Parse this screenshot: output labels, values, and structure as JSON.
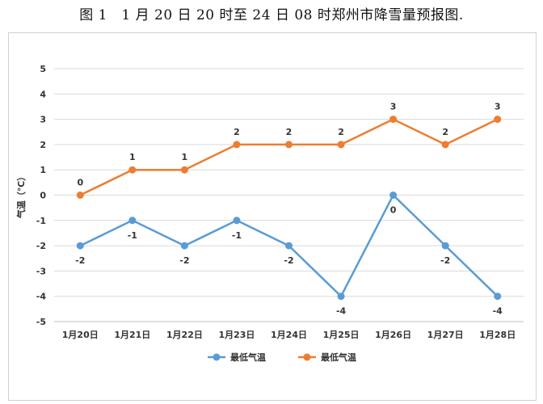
{
  "figure_title": "图 1　1 月 20 日 20 时至 24 日 08 时郑州市降雪量预报图.",
  "chart_data": {
    "type": "line",
    "ylabel": "气温（℃）",
    "xlabel": "",
    "categories": [
      "1月20日",
      "1月21日",
      "1月22日",
      "1月23日",
      "1月24日",
      "1月25日",
      "1月26日",
      "1月27日",
      "1月28日"
    ],
    "ylim": [
      -5,
      5
    ],
    "yticks": [
      5,
      4,
      3,
      2,
      1,
      0,
      -1,
      -2,
      -3,
      -4,
      -5
    ],
    "grid": "horizontal",
    "legend_position": "bottom",
    "series": [
      {
        "name": "最低气温",
        "color": "#5b9bd5",
        "values": [
          -2,
          -1,
          -2,
          -1,
          -2,
          -4,
          0,
          -2,
          -4
        ],
        "label_position": "below"
      },
      {
        "name": "最低气温",
        "color": "#ed7d31",
        "values": [
          0,
          1,
          1,
          2,
          2,
          2,
          3,
          2,
          3
        ],
        "label_position": "above"
      }
    ]
  }
}
